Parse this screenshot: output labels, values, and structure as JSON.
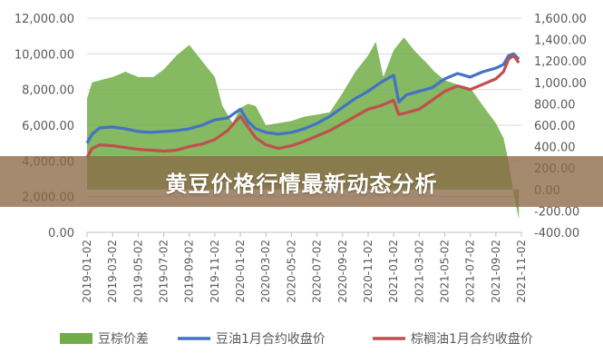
{
  "banner": {
    "text": "黄豆价格行情最新动态分析"
  },
  "chart_data": {
    "type": "line",
    "title": "",
    "left_axis": {
      "min": 0,
      "max": 12000,
      "step": 2000,
      "ticks": [
        "0.00",
        "2,000.00",
        "4,000.00",
        "6,000.00",
        "8,000.00",
        "10,000.00",
        "12,000.00"
      ]
    },
    "right_axis": {
      "min": -400,
      "max": 1600,
      "step": 200,
      "ticks": [
        "-400.00",
        "-200.00",
        "0.00",
        "200.00",
        "400.00",
        "600.00",
        "800.00",
        "1,000.00",
        "1,200.00",
        "1,400.00",
        "1,600.00"
      ]
    },
    "x_ticks": [
      "2019-01-02",
      "2019-03-02",
      "2019-05-02",
      "2019-07-02",
      "2019-09-02",
      "2019-11-02",
      "2020-01-02",
      "2020-03-02",
      "2020-05-02",
      "2020-07-02",
      "2020-09-02",
      "2020-11-02",
      "2021-01-02",
      "2021-03-02",
      "2021-05-02",
      "2021-07-02",
      "2021-09-02",
      "2021-11-02"
    ],
    "series": [
      {
        "name": "豆棕价差",
        "type": "area",
        "axis": "right",
        "color": "#70ad47",
        "x": [
          0,
          0.2,
          1,
          1.5,
          2,
          2.6,
          3,
          3.5,
          4,
          4.5,
          5,
          5.3,
          5.7,
          6,
          6.3,
          6.6,
          7,
          7.5,
          8,
          8.5,
          9,
          9.5,
          10,
          10.5,
          11,
          11.3,
          11.6,
          12,
          12.4,
          12.8,
          13,
          13.3,
          13.6,
          14,
          14.5,
          15,
          15.5,
          16,
          16.3,
          16.5,
          16.7,
          16.9
        ],
        "values": [
          850,
          1000,
          1050,
          1100,
          1050,
          1050,
          1120,
          1250,
          1350,
          1200,
          1050,
          780,
          620,
          760,
          800,
          780,
          600,
          620,
          640,
          680,
          700,
          720,
          900,
          1100,
          1250,
          1380,
          1050,
          1300,
          1420,
          1300,
          1250,
          1180,
          1100,
          1020,
          980,
          950,
          780,
          620,
          480,
          260,
          -40,
          -280
        ]
      },
      {
        "name": "豆油1月合约收盘价",
        "type": "line",
        "axis": "left",
        "color": "#4472c4",
        "x": [
          0,
          0.2,
          0.5,
          1,
          1.5,
          2,
          2.5,
          3,
          3.5,
          4,
          4.5,
          5,
          5.5,
          5.8,
          6,
          6.3,
          6.6,
          7,
          7.5,
          8,
          8.5,
          9,
          9.5,
          10,
          10.5,
          11,
          11.5,
          12,
          12.2,
          12.5,
          13,
          13.5,
          14,
          14.5,
          15,
          15.5,
          16,
          16.3,
          16.5,
          16.7,
          16.9
        ],
        "values": [
          5000,
          5500,
          5850,
          5900,
          5800,
          5650,
          5600,
          5650,
          5700,
          5800,
          6000,
          6300,
          6400,
          6700,
          6900,
          6200,
          5800,
          5600,
          5500,
          5600,
          5800,
          6100,
          6500,
          7000,
          7500,
          7900,
          8400,
          8800,
          7300,
          7700,
          7900,
          8100,
          8600,
          8900,
          8700,
          9000,
          9200,
          9400,
          9900,
          10000,
          9700
        ]
      },
      {
        "name": "棕榈油1月合约收盘价",
        "type": "line",
        "axis": "left",
        "color": "#c0504d",
        "x": [
          0,
          0.2,
          0.5,
          1,
          1.5,
          2,
          2.5,
          3,
          3.5,
          4,
          4.5,
          5,
          5.5,
          5.8,
          6,
          6.3,
          6.6,
          7,
          7.5,
          8,
          8.5,
          9,
          9.5,
          10,
          10.5,
          11,
          11.5,
          12,
          12.2,
          12.5,
          13,
          13.5,
          14,
          14.5,
          15,
          15.5,
          16,
          16.3,
          16.5,
          16.7,
          16.9
        ],
        "values": [
          4200,
          4700,
          4900,
          4850,
          4750,
          4650,
          4600,
          4550,
          4600,
          4800,
          4950,
          5200,
          5700,
          6200,
          6500,
          5900,
          5300,
          4900,
          4700,
          4850,
          5100,
          5400,
          5700,
          6100,
          6500,
          6900,
          7100,
          7400,
          6600,
          6700,
          6900,
          7400,
          7900,
          8200,
          8000,
          8300,
          8600,
          9000,
          9700,
          9900,
          9500
        ]
      }
    ],
    "grid": true,
    "legend": "bottom"
  },
  "legend": [
    {
      "label": "豆棕价差",
      "color": "#70ad47",
      "shape": "box"
    },
    {
      "label": "豆油1月合约收盘价",
      "color": "#4472c4",
      "shape": "line"
    },
    {
      "label": "棕榈油1月合约收盘价",
      "color": "#c0504d",
      "shape": "line"
    }
  ]
}
